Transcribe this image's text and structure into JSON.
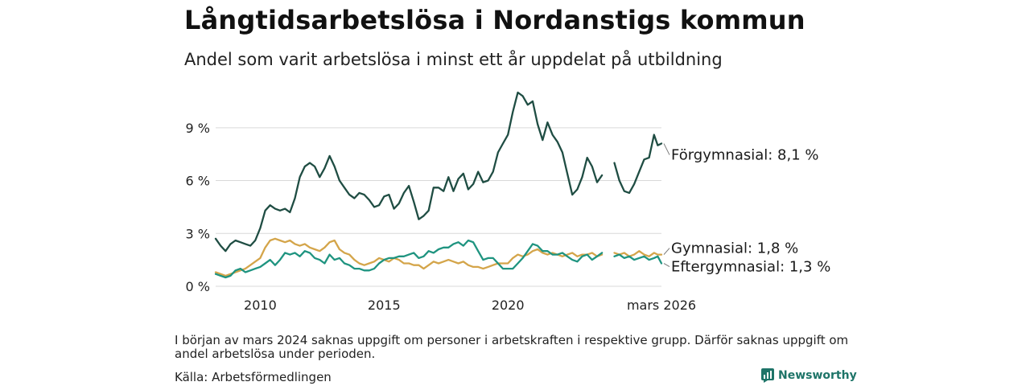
{
  "header": {
    "title": "Långtidsarbetslösa i Nordanstigs kommun",
    "subtitle": "Andel som varit arbetslösa i minst ett år uppdelat på utbildning"
  },
  "footer": {
    "footnote": "I början av mars 2024 saknas uppgift om personer i arbetskraften i respektive grupp. Därför saknas uppgift om andel arbetslösa under perioden.",
    "source": "Källa: Arbetsförmedlingen",
    "brand": "Newsworthy"
  },
  "colors": {
    "forgymnasial": "#1f4d43",
    "gymnasial": "#d4a54a",
    "eftergymnasial": "#1f9480",
    "grid": "#d9d9d9"
  },
  "chart_data": {
    "type": "line",
    "title": "Långtidsarbetslösa i Nordanstigs kommun",
    "xlabel": "",
    "ylabel": "",
    "xlim": [
      2008.2,
      2026.2
    ],
    "ylim": [
      0,
      11
    ],
    "y_ticks": [
      {
        "value": 0,
        "label": "0 %"
      },
      {
        "value": 3,
        "label": "3 %"
      },
      {
        "value": 6,
        "label": "6 %"
      },
      {
        "value": 9,
        "label": "9 %"
      }
    ],
    "x_ticks": [
      {
        "value": 2010,
        "label": "2010"
      },
      {
        "value": 2015,
        "label": "2015"
      },
      {
        "value": 2020,
        "label": "2020"
      },
      {
        "value": 2026.2,
        "label": "mars 2026"
      }
    ],
    "gap": {
      "start": 2023.9,
      "end": 2024.3
    },
    "series": [
      {
        "name": "Förgymnasial",
        "color_key": "forgymnasial",
        "end_label": "Förgymnasial: 8,1 %",
        "label_offset_y": 20,
        "x": [
          2008.2,
          2008.4,
          2008.6,
          2008.8,
          2009.0,
          2009.2,
          2009.4,
          2009.6,
          2009.8,
          2010.0,
          2010.2,
          2010.4,
          2010.6,
          2010.8,
          2011.0,
          2011.2,
          2011.4,
          2011.6,
          2011.8,
          2012.0,
          2012.2,
          2012.4,
          2012.6,
          2012.8,
          2013.0,
          2013.2,
          2013.4,
          2013.6,
          2013.8,
          2014.0,
          2014.2,
          2014.4,
          2014.6,
          2014.8,
          2015.0,
          2015.2,
          2015.4,
          2015.6,
          2015.8,
          2016.0,
          2016.2,
          2016.4,
          2016.6,
          2016.8,
          2017.0,
          2017.2,
          2017.4,
          2017.6,
          2017.8,
          2018.0,
          2018.2,
          2018.4,
          2018.6,
          2018.8,
          2019.0,
          2019.2,
          2019.4,
          2019.6,
          2019.8,
          2020.0,
          2020.2,
          2020.4,
          2020.6,
          2020.8,
          2021.0,
          2021.2,
          2021.4,
          2021.6,
          2021.8,
          2022.0,
          2022.2,
          2022.4,
          2022.6,
          2022.8,
          2023.0,
          2023.2,
          2023.4,
          2023.6,
          2023.8,
          2024.3,
          2024.5,
          2024.7,
          2024.9,
          2025.1,
          2025.3,
          2025.5,
          2025.7,
          2025.9,
          2026.05,
          2026.2
        ],
        "values": [
          2.7,
          2.3,
          2.0,
          2.4,
          2.6,
          2.5,
          2.4,
          2.3,
          2.6,
          3.3,
          4.3,
          4.6,
          4.4,
          4.3,
          4.4,
          4.2,
          5.0,
          6.2,
          6.8,
          7.0,
          6.8,
          6.2,
          6.7,
          7.4,
          6.8,
          6.0,
          5.6,
          5.2,
          5.0,
          5.3,
          5.2,
          4.9,
          4.5,
          4.6,
          5.1,
          5.2,
          4.4,
          4.7,
          5.3,
          5.7,
          4.8,
          3.8,
          4.0,
          4.3,
          5.6,
          5.6,
          5.4,
          6.2,
          5.4,
          6.1,
          6.4,
          5.5,
          5.8,
          6.5,
          5.9,
          6.0,
          6.5,
          7.6,
          8.1,
          8.6,
          9.9,
          11.0,
          10.8,
          10.3,
          10.5,
          9.2,
          8.3,
          9.3,
          8.6,
          8.2,
          7.6,
          6.4,
          5.2,
          5.5,
          6.2,
          7.3,
          6.8,
          5.9,
          6.3,
          7.0,
          6.0,
          5.4,
          5.3,
          5.8,
          6.5,
          7.2,
          7.3,
          8.6,
          8.0,
          8.1
        ]
      },
      {
        "name": "Gymnasial",
        "color_key": "gymnasial",
        "end_label": "Gymnasial: 1,8 %",
        "label_offset_y": -2,
        "x": [
          2008.2,
          2008.4,
          2008.6,
          2008.8,
          2009.0,
          2009.2,
          2009.4,
          2009.6,
          2009.8,
          2010.0,
          2010.2,
          2010.4,
          2010.6,
          2010.8,
          2011.0,
          2011.2,
          2011.4,
          2011.6,
          2011.8,
          2012.0,
          2012.2,
          2012.4,
          2012.6,
          2012.8,
          2013.0,
          2013.2,
          2013.4,
          2013.6,
          2013.8,
          2014.0,
          2014.2,
          2014.4,
          2014.6,
          2014.8,
          2015.0,
          2015.2,
          2015.4,
          2015.6,
          2015.8,
          2016.0,
          2016.2,
          2016.4,
          2016.6,
          2016.8,
          2017.0,
          2017.2,
          2017.4,
          2017.6,
          2017.8,
          2018.0,
          2018.2,
          2018.4,
          2018.6,
          2018.8,
          2019.0,
          2019.2,
          2019.4,
          2019.6,
          2019.8,
          2020.0,
          2020.2,
          2020.4,
          2020.6,
          2020.8,
          2021.0,
          2021.2,
          2021.4,
          2021.6,
          2021.8,
          2022.0,
          2022.2,
          2022.4,
          2022.6,
          2022.8,
          2023.0,
          2023.2,
          2023.4,
          2023.6,
          2023.8,
          2024.3,
          2024.5,
          2024.7,
          2024.9,
          2025.1,
          2025.3,
          2025.5,
          2025.7,
          2025.9,
          2026.05,
          2026.2
        ],
        "values": [
          0.8,
          0.7,
          0.6,
          0.7,
          0.8,
          0.9,
          1.0,
          1.2,
          1.4,
          1.6,
          2.2,
          2.6,
          2.7,
          2.6,
          2.5,
          2.6,
          2.4,
          2.3,
          2.4,
          2.2,
          2.1,
          2.0,
          2.2,
          2.5,
          2.6,
          2.1,
          1.9,
          1.8,
          1.5,
          1.3,
          1.2,
          1.3,
          1.4,
          1.6,
          1.5,
          1.4,
          1.6,
          1.5,
          1.3,
          1.3,
          1.2,
          1.2,
          1.0,
          1.2,
          1.4,
          1.3,
          1.4,
          1.5,
          1.4,
          1.3,
          1.4,
          1.2,
          1.1,
          1.1,
          1.0,
          1.1,
          1.2,
          1.3,
          1.3,
          1.3,
          1.6,
          1.8,
          1.7,
          1.8,
          2.0,
          2.1,
          1.9,
          1.8,
          1.9,
          1.8,
          1.7,
          1.8,
          1.9,
          1.7,
          1.8,
          1.8,
          1.9,
          1.7,
          1.8,
          1.9,
          1.8,
          1.9,
          1.7,
          1.8,
          2.0,
          1.8,
          1.7,
          1.9,
          1.8,
          1.8
        ]
      },
      {
        "name": "Eftergymnasial",
        "color_key": "eftergymnasial",
        "end_label": "Eftergymnasial: 1,3 %",
        "label_offset_y": 10,
        "x": [
          2008.2,
          2008.4,
          2008.6,
          2008.8,
          2009.0,
          2009.2,
          2009.4,
          2009.6,
          2009.8,
          2010.0,
          2010.2,
          2010.4,
          2010.6,
          2010.8,
          2011.0,
          2011.2,
          2011.4,
          2011.6,
          2011.8,
          2012.0,
          2012.2,
          2012.4,
          2012.6,
          2012.8,
          2013.0,
          2013.2,
          2013.4,
          2013.6,
          2013.8,
          2014.0,
          2014.2,
          2014.4,
          2014.6,
          2014.8,
          2015.0,
          2015.2,
          2015.4,
          2015.6,
          2015.8,
          2016.0,
          2016.2,
          2016.4,
          2016.6,
          2016.8,
          2017.0,
          2017.2,
          2017.4,
          2017.6,
          2017.8,
          2018.0,
          2018.2,
          2018.4,
          2018.6,
          2018.8,
          2019.0,
          2019.2,
          2019.4,
          2019.6,
          2019.8,
          2020.0,
          2020.2,
          2020.4,
          2020.6,
          2020.8,
          2021.0,
          2021.2,
          2021.4,
          2021.6,
          2021.8,
          2022.0,
          2022.2,
          2022.4,
          2022.6,
          2022.8,
          2023.0,
          2023.2,
          2023.4,
          2023.6,
          2023.8,
          2024.3,
          2024.5,
          2024.7,
          2024.9,
          2025.1,
          2025.3,
          2025.5,
          2025.7,
          2025.9,
          2026.05,
          2026.2
        ],
        "values": [
          0.7,
          0.6,
          0.5,
          0.6,
          0.9,
          1.0,
          0.8,
          0.9,
          1.0,
          1.1,
          1.3,
          1.5,
          1.2,
          1.5,
          1.9,
          1.8,
          1.9,
          1.7,
          2.0,
          1.9,
          1.6,
          1.5,
          1.3,
          1.8,
          1.5,
          1.6,
          1.3,
          1.2,
          1.0,
          1.0,
          0.9,
          0.9,
          1.0,
          1.3,
          1.5,
          1.6,
          1.6,
          1.7,
          1.7,
          1.8,
          1.9,
          1.6,
          1.7,
          2.0,
          1.9,
          2.1,
          2.2,
          2.2,
          2.4,
          2.5,
          2.3,
          2.6,
          2.5,
          2.0,
          1.5,
          1.6,
          1.6,
          1.3,
          1.0,
          1.0,
          1.0,
          1.3,
          1.6,
          2.0,
          2.4,
          2.3,
          2.0,
          2.0,
          1.8,
          1.8,
          1.9,
          1.7,
          1.5,
          1.4,
          1.7,
          1.8,
          1.5,
          1.7,
          1.9,
          1.7,
          1.8,
          1.6,
          1.7,
          1.5,
          1.6,
          1.7,
          1.5,
          1.6,
          1.7,
          1.3
        ]
      }
    ]
  }
}
